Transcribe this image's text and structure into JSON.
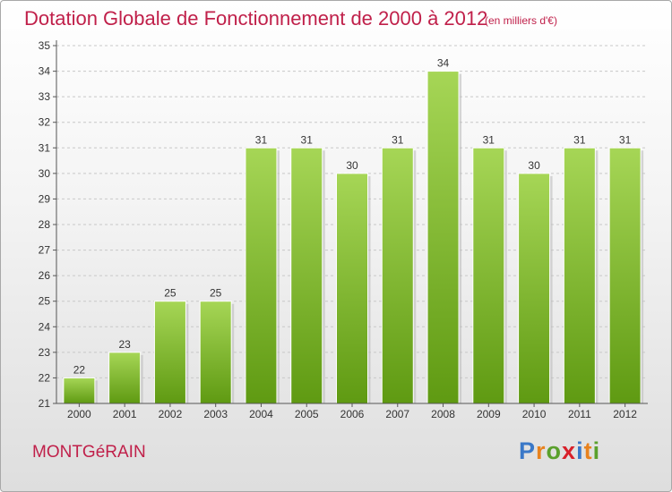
{
  "header": {
    "title": "Dotation Globale de Fonctionnement de 2000 à 2012",
    "subtitle": "(en milliers d'€)"
  },
  "footer": {
    "commune": "MONTGéRAIN",
    "logo_letters": [
      "P",
      "r",
      "o",
      "x",
      "i",
      "t",
      "i"
    ],
    "logo_colors": [
      "#3a78c8",
      "#e8821e",
      "#5aa02c",
      "#d8202a",
      "#3a78c8",
      "#e8821e",
      "#5aa02c"
    ]
  },
  "colors": {
    "bar_top": "#a6d656",
    "bar_bottom": "#5f9a12",
    "title": "#c0204a"
  },
  "chart_data": {
    "type": "bar",
    "categories": [
      "2000",
      "2001",
      "2002",
      "2003",
      "2004",
      "2005",
      "2006",
      "2007",
      "2008",
      "2009",
      "2010",
      "2011",
      "2012"
    ],
    "values": [
      22,
      23,
      25,
      25,
      31,
      31,
      30,
      31,
      34,
      31,
      30,
      31,
      31
    ],
    "ylim": [
      21,
      35
    ],
    "yticks": [
      21,
      22,
      23,
      24,
      25,
      26,
      27,
      28,
      29,
      30,
      31,
      32,
      33,
      34,
      35
    ],
    "grid": true
  }
}
